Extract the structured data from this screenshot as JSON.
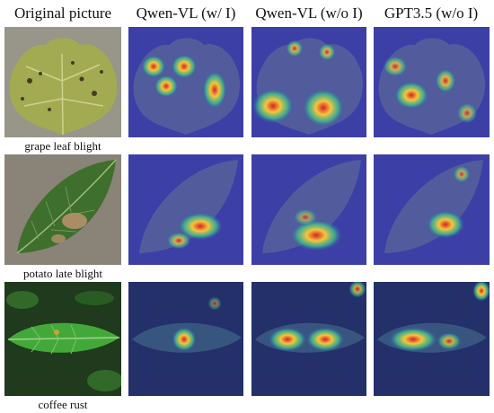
{
  "columns": [
    {
      "id": "original",
      "label": "Original picture"
    },
    {
      "id": "qwen-vl-wi",
      "label": "Qwen-VL (w/ I)"
    },
    {
      "id": "qwen-vl-woi",
      "label": "Qwen-VL (w/o I)"
    },
    {
      "id": "gpt35-woi",
      "label": "GPT3.5 (w/o I)"
    }
  ],
  "rows": [
    {
      "id": "grape",
      "caption": "grape leaf blight"
    },
    {
      "id": "potato",
      "caption": "potato late blight"
    },
    {
      "id": "coffee",
      "caption": "coffee rust"
    }
  ],
  "colors": {
    "heatmap_background": "#3c3fa6",
    "heat_hot": "#d4232a",
    "heat_warm": "#f6c63a",
    "heat_cool": "#3bbf8e",
    "grape_leaf": "#9aa64a",
    "potato_leaf": "#3e6f2c",
    "coffee_leaf": "#43a83a"
  }
}
